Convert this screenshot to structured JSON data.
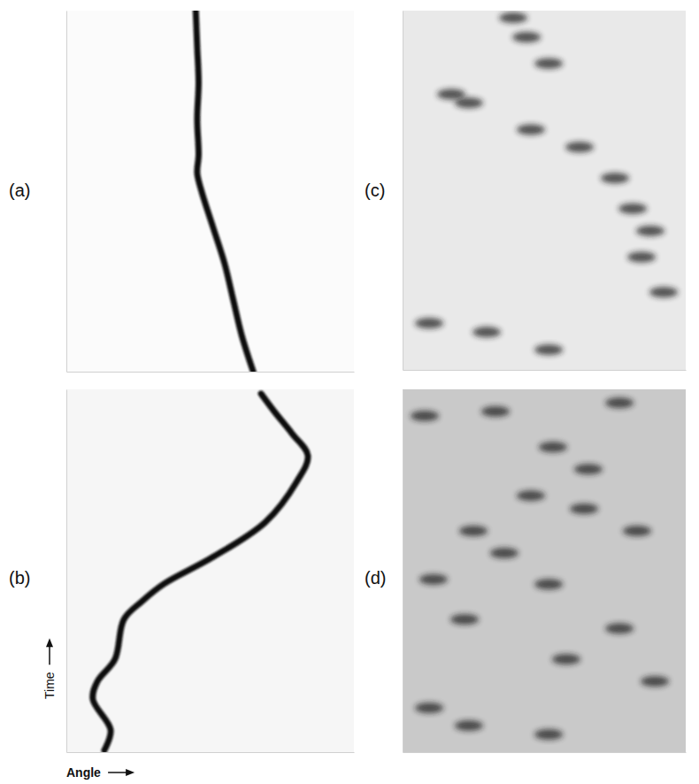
{
  "chart_data": [
    {
      "type": "line",
      "title": "(a)",
      "color": "#111111",
      "tick_labels": false,
      "xlim": [
        0,
        100
      ],
      "ylim": [
        0,
        100
      ],
      "x": [
        65,
        61,
        58,
        55,
        51,
        47,
        45.5,
        46,
        45.5,
        46,
        45.5,
        45
      ],
      "values": [
        0,
        10,
        20,
        30,
        40,
        50,
        55,
        60,
        70,
        80,
        90,
        100
      ]
    },
    {
      "type": "line",
      "title": "(b)",
      "color": "#111111",
      "tick_labels": false,
      "x_label": "Angle",
      "y_label": "Time",
      "xlim": [
        0,
        100
      ],
      "ylim": [
        0,
        100
      ],
      "x": [
        13.2,
        15.4,
        9.2,
        10.8,
        16.9,
        20,
        26.2,
        33.8,
        50.8,
        69.2,
        80,
        84,
        78.5,
        72.3,
        67.7
      ],
      "values": [
        0.5,
        6.1,
        14.6,
        19.5,
        25.6,
        36.6,
        41.5,
        46.3,
        53.7,
        63.4,
        74.4,
        81.7,
        87.8,
        93.9,
        98.8
      ]
    },
    {
      "type": "scatter",
      "title": "(c)",
      "color": "#1a1a1a",
      "tick_labels": false,
      "xlim": [
        0,
        100
      ],
      "ylim": [
        0,
        100
      ],
      "x": [
        39.1,
        43.8,
        51.6,
        23.4,
        17.2,
        45.3,
        62.5,
        75,
        81.3,
        87.5,
        84.4,
        92.2,
        9.4,
        29.7,
        51.6
      ],
      "values": [
        98,
        92.6,
        85.3,
        74.3,
        76.7,
        66.9,
        62,
        53.4,
        44.9,
        38.7,
        31.4,
        21.6,
        13,
        10.5,
        5.6
      ]
    },
    {
      "type": "scatter",
      "title": "(d)",
      "color": "#1a1a1a",
      "tick_labels": false,
      "xlim": [
        0,
        100
      ],
      "ylim": [
        0,
        100
      ],
      "x": [
        7.8,
        32.8,
        76.6,
        53.1,
        65.6,
        45.3,
        64.1,
        82.8,
        25,
        35.9,
        10.9,
        51.6,
        21.9,
        76.6,
        57.8,
        89.1,
        9.4,
        23.4,
        51.6
      ],
      "values": [
        92.7,
        93.9,
        96.3,
        84.1,
        78,
        70.7,
        67.1,
        61,
        61,
        54.9,
        47.6,
        46.3,
        36.6,
        34.1,
        25.6,
        19.5,
        12.2,
        7.3,
        4.9
      ]
    }
  ]
}
